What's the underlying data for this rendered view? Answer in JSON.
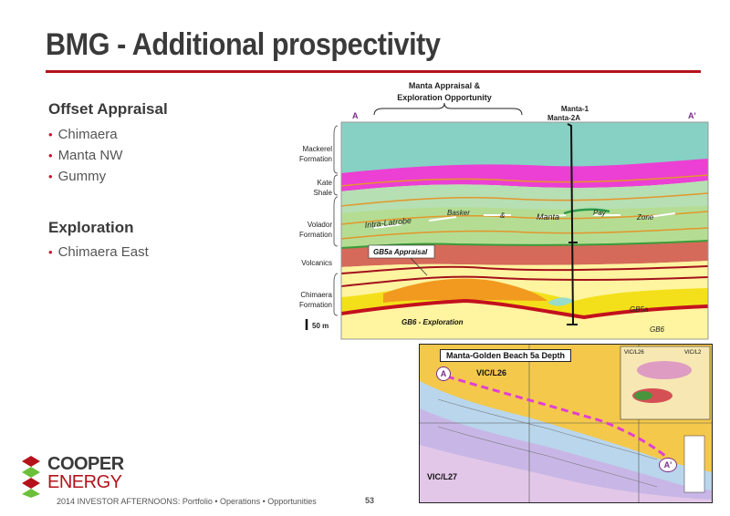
{
  "slide": {
    "title": "BMG - Additional prospectivity",
    "offset_heading": "Offset Appraisal",
    "offset_items": [
      "Chimaera",
      "Manta NW",
      "Gummy"
    ],
    "exploration_heading": "Exploration",
    "exploration_items": [
      "Chimaera East"
    ],
    "footer": "2014 INVESTOR AFTERNOONS: Portfolio • Operations • Opportunities",
    "page_number": "53",
    "accent_color": "#b5121b"
  },
  "logo": {
    "line1": "COOPER",
    "line2": "ENERGY"
  },
  "cross_section": {
    "callout": "Manta Appraisal &",
    "callout2": "Exploration Opportunity",
    "wells_line1": "Manta-1",
    "wells_line2": "Manta-2A",
    "end_left": "A",
    "end_right": "A'",
    "formations": {
      "mackerel": [
        "Mackerel",
        "Formation"
      ],
      "kate": [
        "Kate",
        "Shale"
      ],
      "volador": [
        "Volador",
        "Formation"
      ],
      "volcanics": "Volcanics",
      "chimaera": [
        "Chimaera",
        "Formation"
      ]
    },
    "scale": "50 m",
    "labels": {
      "intra": "Intra-Latrobe",
      "basker": "Basker",
      "amp": "&",
      "manta": "Manta",
      "pay": "Pay",
      "zone": "Zone",
      "gb5a_appraisal": "GB5a Appraisal",
      "gb6_exploration": "GB6 - Exploration",
      "gb5a": "GB5a",
      "gb6": "GB6"
    }
  },
  "map": {
    "title": "Manta-Golden Beach 5a Depth",
    "permit_top": "VIC/L26",
    "permit_bottom": "VIC/L27",
    "marker_a": "A",
    "marker_a2": "A'",
    "inset_label": "VIC/L26",
    "inset_label2": "VIC/L2"
  }
}
